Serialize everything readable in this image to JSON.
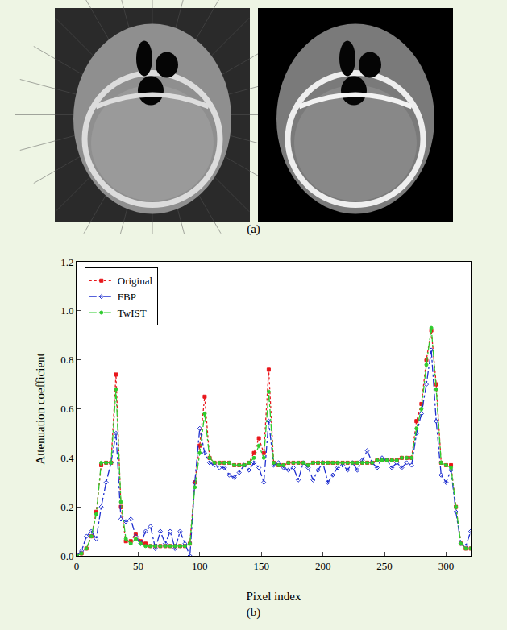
{
  "figure": {
    "panel_a_label": "(a)"
  },
  "chart_data": {
    "type": "line",
    "panel_label": "(b)",
    "x_label": "Pixel index",
    "y_label": "Attenuation coefficient",
    "x": [
      0,
      4,
      8,
      12,
      16,
      20,
      24,
      28,
      32,
      36,
      40,
      44,
      48,
      52,
      56,
      60,
      64,
      68,
      72,
      76,
      80,
      84,
      88,
      92,
      96,
      100,
      104,
      108,
      112,
      116,
      120,
      124,
      128,
      132,
      136,
      140,
      144,
      148,
      152,
      156,
      160,
      164,
      168,
      172,
      176,
      180,
      184,
      188,
      192,
      196,
      200,
      204,
      208,
      212,
      216,
      220,
      224,
      228,
      232,
      236,
      240,
      244,
      248,
      252,
      256,
      260,
      264,
      268,
      272,
      276,
      280,
      284,
      288,
      292,
      296,
      300,
      304,
      308,
      312,
      316,
      320
    ],
    "series": [
      {
        "name": "Original",
        "color": "#e8161b",
        "marker": "square",
        "line_style": "dot",
        "values": [
          0.0,
          0.01,
          0.03,
          0.08,
          0.18,
          0.37,
          0.38,
          0.38,
          0.74,
          0.2,
          0.06,
          0.06,
          0.09,
          0.06,
          0.05,
          0.04,
          0.04,
          0.04,
          0.04,
          0.04,
          0.04,
          0.04,
          0.04,
          0.05,
          0.3,
          0.45,
          0.65,
          0.4,
          0.38,
          0.38,
          0.38,
          0.38,
          0.37,
          0.37,
          0.37,
          0.38,
          0.42,
          0.48,
          0.42,
          0.76,
          0.38,
          0.37,
          0.37,
          0.38,
          0.38,
          0.38,
          0.38,
          0.37,
          0.38,
          0.38,
          0.38,
          0.38,
          0.38,
          0.38,
          0.38,
          0.38,
          0.38,
          0.38,
          0.38,
          0.38,
          0.38,
          0.39,
          0.39,
          0.39,
          0.39,
          0.39,
          0.4,
          0.4,
          0.4,
          0.55,
          0.62,
          0.8,
          0.92,
          0.7,
          0.38,
          0.37,
          0.37,
          0.2,
          0.05,
          0.03,
          0.03
        ]
      },
      {
        "name": "FBP",
        "color": "#1f2fd0",
        "marker": "diamond-open",
        "line_style": "dashdot",
        "values": [
          0.0,
          0.02,
          0.08,
          0.1,
          0.07,
          0.2,
          0.3,
          0.38,
          0.5,
          0.15,
          0.14,
          0.15,
          0.08,
          0.05,
          0.1,
          0.12,
          0.03,
          0.1,
          0.05,
          0.1,
          0.03,
          0.1,
          0.05,
          0.0,
          0.3,
          0.52,
          0.42,
          0.38,
          0.37,
          0.36,
          0.36,
          0.33,
          0.32,
          0.34,
          0.37,
          0.35,
          0.38,
          0.36,
          0.3,
          0.55,
          0.37,
          0.38,
          0.36,
          0.35,
          0.36,
          0.31,
          0.38,
          0.36,
          0.31,
          0.35,
          0.38,
          0.3,
          0.33,
          0.36,
          0.37,
          0.35,
          0.38,
          0.35,
          0.39,
          0.43,
          0.38,
          0.36,
          0.4,
          0.39,
          0.36,
          0.38,
          0.36,
          0.38,
          0.37,
          0.5,
          0.58,
          0.7,
          0.84,
          0.55,
          0.33,
          0.3,
          0.35,
          0.18,
          0.05,
          0.04,
          0.1
        ]
      },
      {
        "name": "TwIST",
        "color": "#2ecc2e",
        "marker": "circle",
        "line_style": "dashdot",
        "values": [
          0.0,
          0.01,
          0.03,
          0.08,
          0.17,
          0.38,
          0.38,
          0.38,
          0.68,
          0.22,
          0.07,
          0.05,
          0.07,
          0.05,
          0.04,
          0.04,
          0.04,
          0.04,
          0.04,
          0.04,
          0.04,
          0.04,
          0.04,
          0.05,
          0.28,
          0.42,
          0.58,
          0.4,
          0.38,
          0.38,
          0.38,
          0.38,
          0.37,
          0.37,
          0.37,
          0.38,
          0.4,
          0.45,
          0.4,
          0.67,
          0.38,
          0.37,
          0.37,
          0.38,
          0.38,
          0.38,
          0.38,
          0.37,
          0.38,
          0.38,
          0.38,
          0.38,
          0.38,
          0.38,
          0.38,
          0.38,
          0.38,
          0.38,
          0.38,
          0.38,
          0.38,
          0.39,
          0.39,
          0.39,
          0.39,
          0.39,
          0.4,
          0.4,
          0.4,
          0.52,
          0.6,
          0.78,
          0.93,
          0.68,
          0.38,
          0.37,
          0.36,
          0.2,
          0.05,
          0.03,
          0.03
        ]
      }
    ],
    "xlim": [
      0,
      320
    ],
    "xticks": [
      0,
      50,
      100,
      150,
      200,
      250,
      300
    ],
    "ylim": [
      0,
      1.2
    ],
    "yticks": [
      {
        "value": 0,
        "label": "0.0"
      },
      {
        "value": 0.2,
        "label": "0.2"
      },
      {
        "value": 0.4,
        "label": "0.4"
      },
      {
        "value": 0.6,
        "label": "0.6"
      },
      {
        "value": 0.8,
        "label": "0.8"
      },
      {
        "value": 1.0,
        "label": "1.0"
      },
      {
        "value": 1.2,
        "label": "1.2"
      }
    ],
    "legend": "top-left",
    "grid": false
  }
}
